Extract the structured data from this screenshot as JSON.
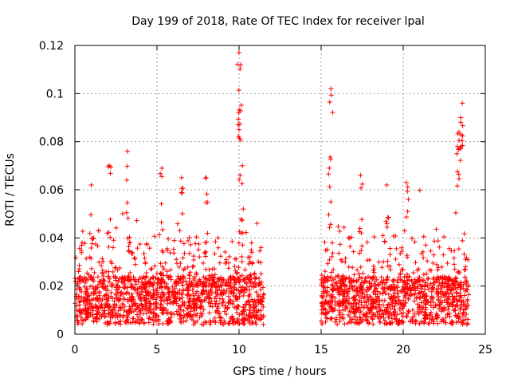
{
  "chart_data": {
    "type": "scatter",
    "title": "Day 199 of 2018, Rate Of TEC Index for receiver lpal",
    "xlabel": "GPS time / hours",
    "ylabel": "ROTI / TECUs",
    "xlim": [
      0,
      25
    ],
    "ylim": [
      0,
      0.12
    ],
    "xticks": [
      0,
      5,
      10,
      15,
      20,
      25
    ],
    "yticks": [
      0,
      0.02,
      0.04,
      0.06,
      0.08,
      0.1,
      0.12
    ],
    "xtick_labels": [
      "0",
      "5",
      "10",
      "15",
      "20",
      "25"
    ],
    "ytick_labels": [
      "0",
      "0.02",
      "0.04",
      "0.06",
      "0.08",
      "0.1",
      "0.12"
    ],
    "grid": true,
    "marker": "+",
    "color": "#ff0000",
    "data_segments": [
      {
        "start": 0.0,
        "end": 11.5,
        "base": 0.015,
        "spread": 0.02
      },
      {
        "start": 15.0,
        "end": 24.0,
        "base": 0.015,
        "spread": 0.02
      }
    ],
    "peaks": [
      {
        "x": 3.2,
        "y": 0.076
      },
      {
        "x": 10.0,
        "y": 0.117
      },
      {
        "x": 10.1,
        "y": 0.112
      },
      {
        "x": 10.0,
        "y": 0.085
      },
      {
        "x": 15.6,
        "y": 0.102
      },
      {
        "x": 23.6,
        "y": 0.096
      },
      {
        "x": 23.5,
        "y": 0.09
      },
      {
        "x": 23.4,
        "y": 0.084
      },
      {
        "x": 23.3,
        "y": 0.078
      },
      {
        "x": 2.1,
        "y": 0.07
      },
      {
        "x": 5.3,
        "y": 0.069
      },
      {
        "x": 10.2,
        "y": 0.07
      },
      {
        "x": 15.5,
        "y": 0.069
      },
      {
        "x": 17.4,
        "y": 0.066
      },
      {
        "x": 8.0,
        "y": 0.065
      },
      {
        "x": 6.5,
        "y": 0.065
      },
      {
        "x": 20.2,
        "y": 0.063
      },
      {
        "x": 19.0,
        "y": 0.062
      },
      {
        "x": 1.0,
        "y": 0.062
      }
    ]
  }
}
